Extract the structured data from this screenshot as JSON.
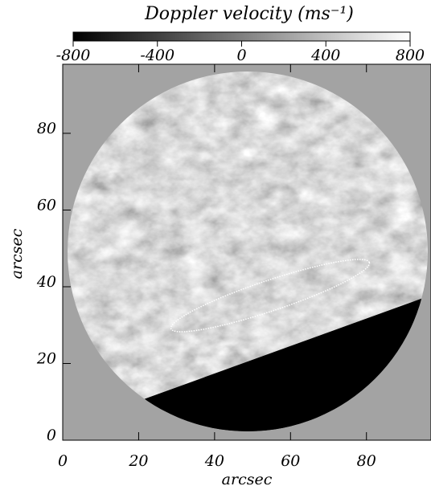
{
  "chart_data": {
    "type": "image",
    "title": "Doppler velocity (ms⁻¹)",
    "colorbar": {
      "range": [
        -800,
        800
      ],
      "ticks": [
        -800,
        -400,
        0,
        400,
        800
      ]
    },
    "xlabel": "arcsec",
    "ylabel": "arcsec",
    "xlim": [
      0,
      97
    ],
    "xticks": [
      0,
      20,
      40,
      60,
      80
    ],
    "ylim": [
      0,
      98
    ],
    "yticks": [
      0,
      20,
      40,
      60,
      80
    ]
  }
}
